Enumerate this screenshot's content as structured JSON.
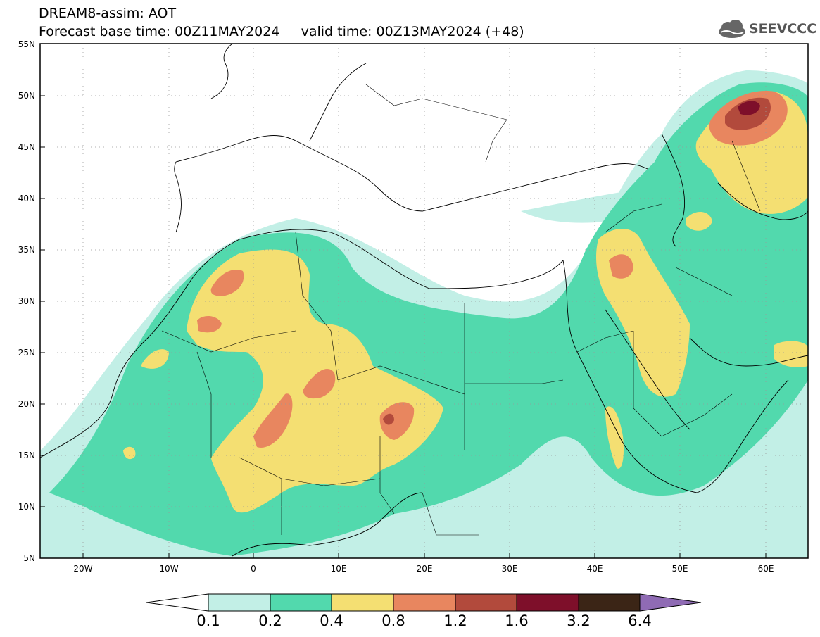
{
  "header": {
    "line1": "DREAM8-assim: AOT",
    "line2": "Forecast base time: 00Z11MAY2024     valid time: 00Z13MAY2024 (+48)"
  },
  "logo": {
    "text": "SEEVCCC",
    "icon": "cloud-logo-icon"
  },
  "map": {
    "lon_range": [
      -25,
      65
    ],
    "lat_range": [
      5,
      55
    ],
    "lat_ticks": [
      "5N",
      "10N",
      "15N",
      "20N",
      "25N",
      "30N",
      "35N",
      "40N",
      "45N",
      "50N",
      "55N"
    ],
    "lon_ticks": [
      "20W",
      "10W",
      "0",
      "10E",
      "20E",
      "30E",
      "40E",
      "50E",
      "60E"
    ],
    "grid": true
  },
  "colorbar": {
    "labels": [
      "0.1",
      "0.2",
      "0.4",
      "0.8",
      "1.2",
      "1.6",
      "3.2",
      "6.4"
    ],
    "colors": [
      "#c2efe6",
      "#52d9ad",
      "#f4df72",
      "#e8865f",
      "#b24a3c",
      "#7e0f2a",
      "#3b2516",
      "#8f6bb4"
    ]
  }
}
